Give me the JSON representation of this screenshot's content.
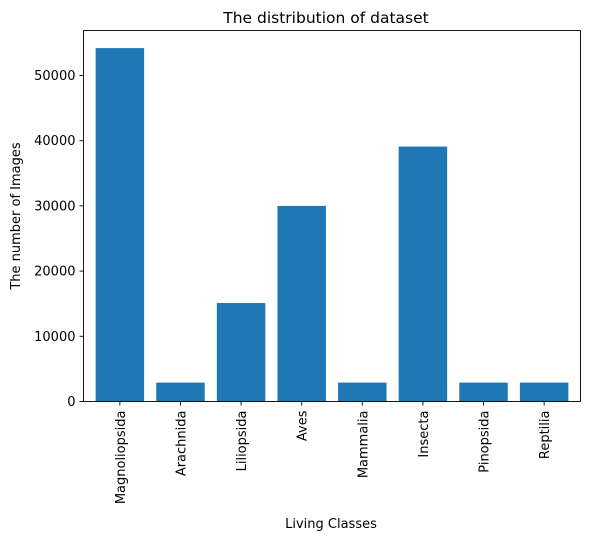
{
  "chart_data": {
    "type": "bar",
    "title": "The distribution of dataset",
    "xlabel": "Living Classes",
    "ylabel": "The number of Images",
    "categories": [
      "Magnoliopsida",
      "Arachnida",
      "Liliopsida",
      "Aves",
      "Mammalia",
      "Insecta",
      "Pinopsida",
      "Reptilia"
    ],
    "values": [
      54200,
      2900,
      15100,
      30000,
      2900,
      39100,
      2900,
      2900
    ],
    "yticks": [
      0,
      10000,
      20000,
      30000,
      40000,
      50000
    ],
    "ylim": [
      0,
      56900
    ],
    "bar_color": "#1f77b4",
    "grid": false,
    "legend": "none"
  }
}
